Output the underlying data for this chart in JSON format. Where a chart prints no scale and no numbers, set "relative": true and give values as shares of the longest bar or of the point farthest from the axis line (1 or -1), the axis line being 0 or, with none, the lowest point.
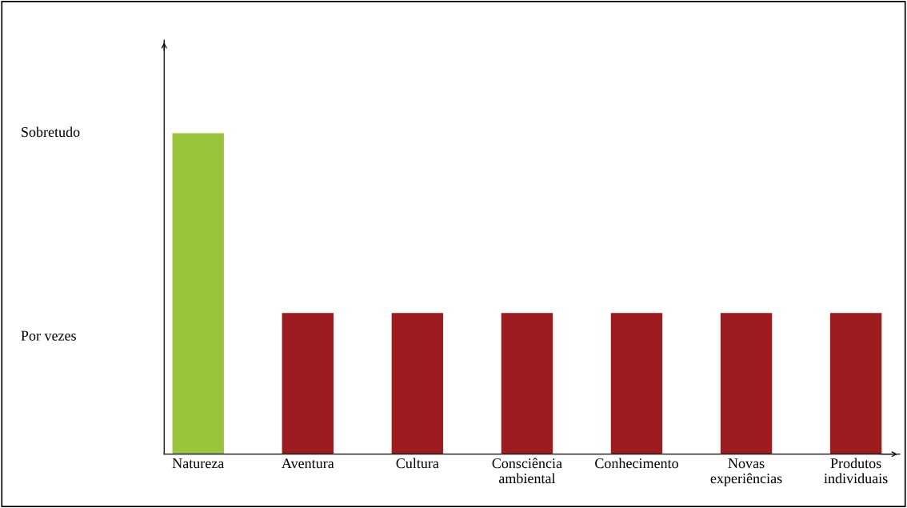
{
  "chart_data": {
    "type": "bar",
    "relative": true,
    "categories": [
      "Natureza",
      "Aventura",
      "Cultura",
      "Consciência\nambiental",
      "Conhecimento",
      "Novas\nexperiências",
      "Produtos\nindividuais"
    ],
    "values": [
      1.0,
      0.44,
      0.44,
      0.44,
      0.44,
      0.44,
      0.44
    ],
    "colors": [
      "#9ac43c",
      "#9b1b1f",
      "#9b1b1f",
      "#9b1b1f",
      "#9b1b1f",
      "#9b1b1f",
      "#9b1b1f"
    ],
    "annotations": [
      "Sobretudo",
      "Por vezes"
    ],
    "grid": false,
    "legend": false
  }
}
